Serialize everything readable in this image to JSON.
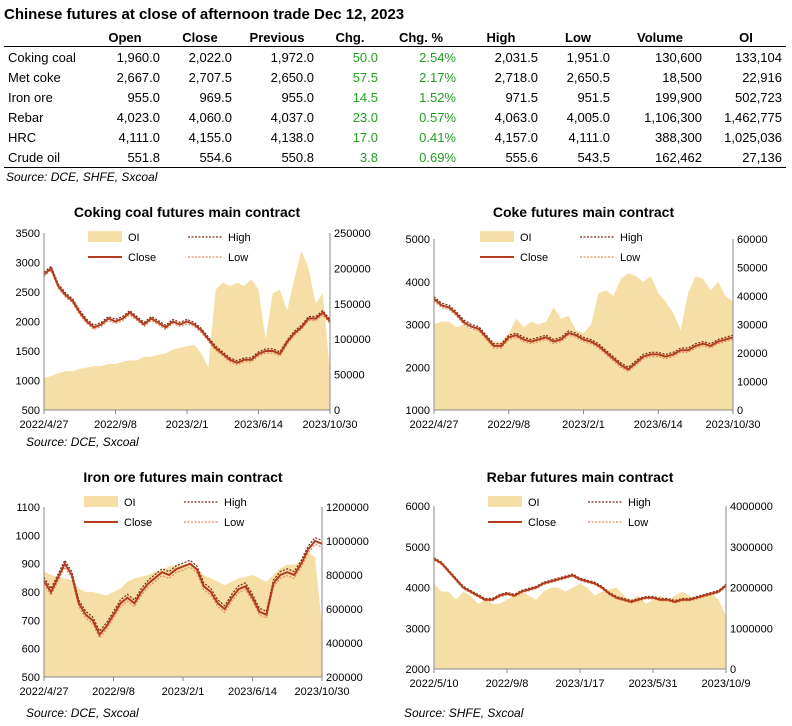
{
  "table": {
    "title": "Chinese futures at close of afternoon trade Dec 12, 2023",
    "headers": [
      "",
      "Open",
      "Close",
      "Previous",
      "Chg.",
      "Chg. %",
      "High",
      "Low",
      "Volume",
      "OI"
    ],
    "rows": [
      [
        "Coking coal",
        "1,960.0",
        "2,022.0",
        "1,972.0",
        "50.0",
        "2.54%",
        "2,031.5",
        "1,951.0",
        "130,600",
        "133,104"
      ],
      [
        "Met coke",
        "2,667.0",
        "2,707.5",
        "2,650.0",
        "57.5",
        "2.17%",
        "2,718.0",
        "2,650.5",
        "18,500",
        "22,916"
      ],
      [
        "Iron ore",
        "955.0",
        "969.5",
        "955.0",
        "14.5",
        "1.52%",
        "971.5",
        "951.5",
        "199,900",
        "502,723"
      ],
      [
        "Rebar",
        "4,023.0",
        "4,060.0",
        "4,037.0",
        "23.0",
        "0.57%",
        "4,063.0",
        "4,005.0",
        "1,106,300",
        "1,462,775"
      ],
      [
        "HRC",
        "4,111.0",
        "4,155.0",
        "4,138.0",
        "17.0",
        "0.41%",
        "4,157.0",
        "4,111.0",
        "388,300",
        "1,025,036"
      ],
      [
        "Crude oil",
        "551.8",
        "554.6",
        "550.8",
        "3.8",
        "0.69%",
        "555.6",
        "543.5",
        "162,462",
        "27,136"
      ]
    ],
    "change_color": "#22a022",
    "source": "Source: DCE, SHFE, Sxcoal"
  },
  "colors": {
    "oi_fill": "#f5dfa6",
    "close_line": "#b43c1e",
    "high_line": "#7a2a14",
    "low_line": "#e58a5a"
  },
  "chart_data": [
    {
      "type": "line",
      "title": "Coking coal futures main contract",
      "legend": [
        "OI",
        "High",
        "Close",
        "Low"
      ],
      "legend_position": "top",
      "ylim_left": [
        500,
        3500
      ],
      "yticks_left": [
        500,
        1000,
        1500,
        2000,
        2500,
        3000,
        3500
      ],
      "ylim_right": [
        0,
        250000
      ],
      "yticks_right": [
        0,
        50000,
        100000,
        150000,
        200000,
        250000
      ],
      "x_ticklabels": [
        "2022/4/27",
        "2022/9/8",
        "2023/2/1",
        "2023/6/14",
        "2023/10/30"
      ],
      "x_tick_index": [
        0,
        10,
        20,
        30,
        40
      ],
      "close": [
        2800,
        2900,
        2600,
        2450,
        2350,
        2150,
        2000,
        1900,
        1950,
        2050,
        2000,
        2050,
        2150,
        2050,
        1950,
        2050,
        1980,
        1900,
        2000,
        1950,
        2000,
        1950,
        1850,
        1700,
        1550,
        1450,
        1350,
        1300,
        1350,
        1350,
        1450,
        1500,
        1500,
        1450,
        1650,
        1800,
        1900,
        2050,
        2050,
        2150,
        2000
      ],
      "high_offset": 35,
      "low_offset": 35,
      "oi": [
        45000,
        48000,
        52000,
        55000,
        55000,
        58000,
        60000,
        62000,
        62000,
        65000,
        65000,
        68000,
        70000,
        70000,
        75000,
        75000,
        78000,
        80000,
        85000,
        88000,
        90000,
        92000,
        80000,
        60000,
        170000,
        180000,
        175000,
        180000,
        175000,
        185000,
        170000,
        100000,
        165000,
        170000,
        140000,
        185000,
        225000,
        200000,
        150000,
        165000,
        55000
      ],
      "source": "Source:  DCE, Sxcoal"
    },
    {
      "type": "line",
      "title": "Coke futures main contract",
      "legend": [
        "OI",
        "High",
        "Close",
        "Low"
      ],
      "legend_position": "top",
      "ylim_left": [
        1000,
        5000
      ],
      "yticks_left": [
        1000,
        2000,
        3000,
        4000,
        5000
      ],
      "ylim_right": [
        0,
        60000
      ],
      "yticks_right": [
        0,
        10000,
        20000,
        30000,
        40000,
        50000,
        60000
      ],
      "x_ticklabels": [
        "2022/4/27",
        "2022/9/8",
        "2023/2/1",
        "2023/6/14",
        "2023/10/30"
      ],
      "x_tick_index": [
        0,
        10,
        20,
        30,
        40
      ],
      "close": [
        3600,
        3450,
        3400,
        3250,
        3050,
        2950,
        2900,
        2700,
        2500,
        2500,
        2700,
        2750,
        2650,
        2600,
        2650,
        2700,
        2600,
        2650,
        2800,
        2750,
        2650,
        2600,
        2500,
        2350,
        2200,
        2050,
        1950,
        2100,
        2250,
        2300,
        2300,
        2250,
        2300,
        2400,
        2400,
        2500,
        2550,
        2500,
        2600,
        2650,
        2700
      ],
      "high_offset": 50,
      "low_offset": 50,
      "oi": [
        30000,
        31000,
        31000,
        29000,
        30000,
        28000,
        29000,
        25000,
        24000,
        24000,
        27000,
        32000,
        29000,
        31000,
        30000,
        31000,
        36000,
        32000,
        33000,
        28000,
        27000,
        30000,
        41000,
        42000,
        40000,
        46000,
        48000,
        47000,
        45000,
        47000,
        41000,
        38000,
        34000,
        28000,
        41000,
        47000,
        46000,
        42000,
        45000,
        40000,
        38000
      ],
      "source": ""
    },
    {
      "type": "line",
      "title": "Iron ore futures main contract",
      "legend": [
        "OI",
        "High",
        "Close",
        "Low"
      ],
      "legend_position": "top",
      "ylim_left": [
        500,
        1100
      ],
      "yticks_left": [
        500,
        600,
        700,
        800,
        900,
        1000,
        1100
      ],
      "ylim_right": [
        200000,
        1200000
      ],
      "yticks_right": [
        200000,
        400000,
        600000,
        800000,
        1000000,
        1200000
      ],
      "x_ticklabels": [
        "2022/4/27",
        "2022/9/8",
        "2023/2/1",
        "2023/6/14",
        "2023/10/30"
      ],
      "x_tick_index": [
        0,
        10,
        20,
        30,
        40
      ],
      "close": [
        840,
        800,
        850,
        900,
        860,
        760,
        720,
        700,
        650,
        680,
        720,
        760,
        780,
        760,
        800,
        830,
        850,
        870,
        860,
        880,
        890,
        900,
        880,
        820,
        800,
        760,
        740,
        780,
        810,
        820,
        780,
        730,
        720,
        830,
        860,
        870,
        860,
        900,
        950,
        980,
        970
      ],
      "high_offset": 12,
      "low_offset": 12,
      "oi": [
        820000,
        800000,
        790000,
        780000,
        770000,
        720000,
        700000,
        700000,
        690000,
        680000,
        700000,
        720000,
        760000,
        780000,
        790000,
        800000,
        820000,
        830000,
        850000,
        860000,
        860000,
        860000,
        840000,
        800000,
        780000,
        760000,
        740000,
        760000,
        780000,
        790000,
        800000,
        780000,
        760000,
        800000,
        840000,
        860000,
        860000,
        880000,
        940000,
        900000,
        500000
      ],
      "source": "Source:  DCE, Sxcoal"
    },
    {
      "type": "line",
      "title": "Rebar futures main contract",
      "legend": [
        "OI",
        "High",
        "Close",
        "Low"
      ],
      "legend_position": "top",
      "ylim_left": [
        2000,
        6000
      ],
      "yticks_left": [
        2000,
        3000,
        4000,
        5000,
        6000
      ],
      "ylim_right": [
        0,
        4000000
      ],
      "yticks_right": [
        0,
        1000000,
        2000000,
        3000000,
        4000000
      ],
      "x_ticklabels": [
        "2022/5/10",
        "2022/9/8",
        "2023/1/17",
        "2023/5/31",
        "2023/10/9"
      ],
      "x_tick_index": [
        0,
        10,
        20,
        30,
        40
      ],
      "close": [
        4700,
        4600,
        4400,
        4200,
        4000,
        3900,
        3800,
        3700,
        3700,
        3800,
        3850,
        3800,
        3900,
        3950,
        4000,
        4100,
        4150,
        4200,
        4250,
        4300,
        4200,
        4150,
        4100,
        4000,
        3850,
        3750,
        3700,
        3650,
        3700,
        3750,
        3750,
        3700,
        3700,
        3650,
        3700,
        3700,
        3750,
        3800,
        3850,
        3900,
        4050
      ],
      "high_offset": 30,
      "low_offset": 30,
      "oi": [
        2100000,
        1900000,
        1900000,
        1700000,
        1900000,
        1800000,
        1600000,
        1700000,
        1600000,
        1600000,
        1700000,
        1800000,
        1900000,
        1800000,
        1700000,
        1900000,
        2000000,
        2000000,
        1900000,
        2000000,
        2100000,
        2000000,
        1800000,
        1900000,
        1950000,
        2000000,
        1800000,
        1700000,
        1800000,
        1600000,
        1700000,
        1800000,
        1700000,
        1800000,
        1900000,
        1800000,
        1700000,
        1800000,
        1850000,
        1700000,
        1300000
      ],
      "source": "Source:  SHFE, Sxcoal"
    }
  ]
}
